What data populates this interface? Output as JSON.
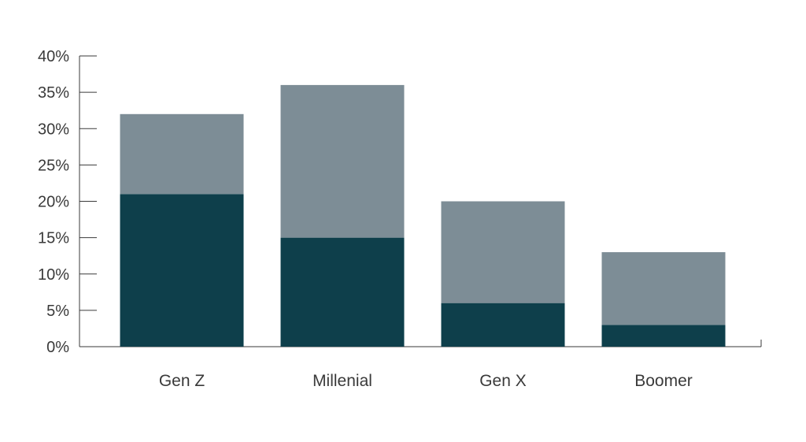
{
  "chart_data": {
    "type": "bar",
    "stacked": true,
    "categories": [
      "Gen Z",
      "Millenial",
      "Gen X",
      "Boomer"
    ],
    "series": [
      {
        "values": [
          21,
          15,
          6,
          3
        ],
        "color": "#0e3f4b"
      },
      {
        "values": [
          11,
          21,
          14,
          10
        ],
        "color": "#7d8d96"
      }
    ],
    "title": "",
    "xlabel": "",
    "ylabel": "",
    "ylim": [
      0,
      40
    ],
    "yticks": [
      0,
      5,
      10,
      15,
      20,
      25,
      30,
      35,
      40
    ],
    "ytick_labels": [
      "0%",
      "5%",
      "10%",
      "15%",
      "20%",
      "25%",
      "30%",
      "35%",
      "40%"
    ],
    "grid": false,
    "legend": "none"
  },
  "colors": {
    "axis": "#3a3a3a",
    "background": "#ffffff"
  }
}
